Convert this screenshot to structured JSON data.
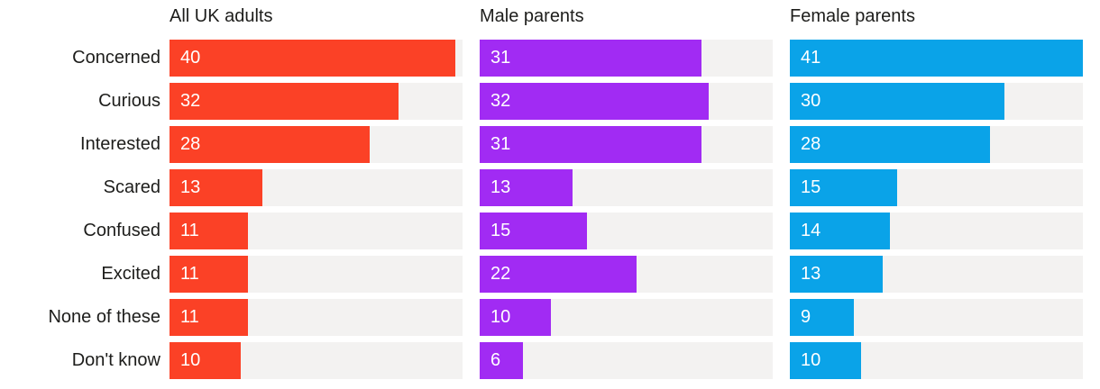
{
  "chart_data": {
    "type": "bar",
    "orientation": "horizontal",
    "title": "",
    "categories": [
      "Concerned",
      "Curious",
      "Interested",
      "Scared",
      "Confused",
      "Excited",
      "None of these",
      "Don't know"
    ],
    "series": [
      {
        "name": "All UK adults",
        "color": "#FB4126",
        "values": [
          40,
          32,
          28,
          13,
          11,
          11,
          11,
          10
        ]
      },
      {
        "name": "Male parents",
        "color": "#A12BF3",
        "values": [
          31,
          32,
          31,
          13,
          15,
          22,
          10,
          6
        ]
      },
      {
        "name": "Female parents",
        "color": "#0AA3E8",
        "values": [
          41,
          30,
          28,
          15,
          14,
          13,
          9,
          10
        ]
      }
    ],
    "xlim": [
      0,
      41
    ],
    "grid": false,
    "legend_position": "column-headers",
    "value_labels": "inside-left",
    "track_color": "#F3F2F1",
    "text_color": "#1D1D1B",
    "value_label_color": "#FFFFFF"
  }
}
